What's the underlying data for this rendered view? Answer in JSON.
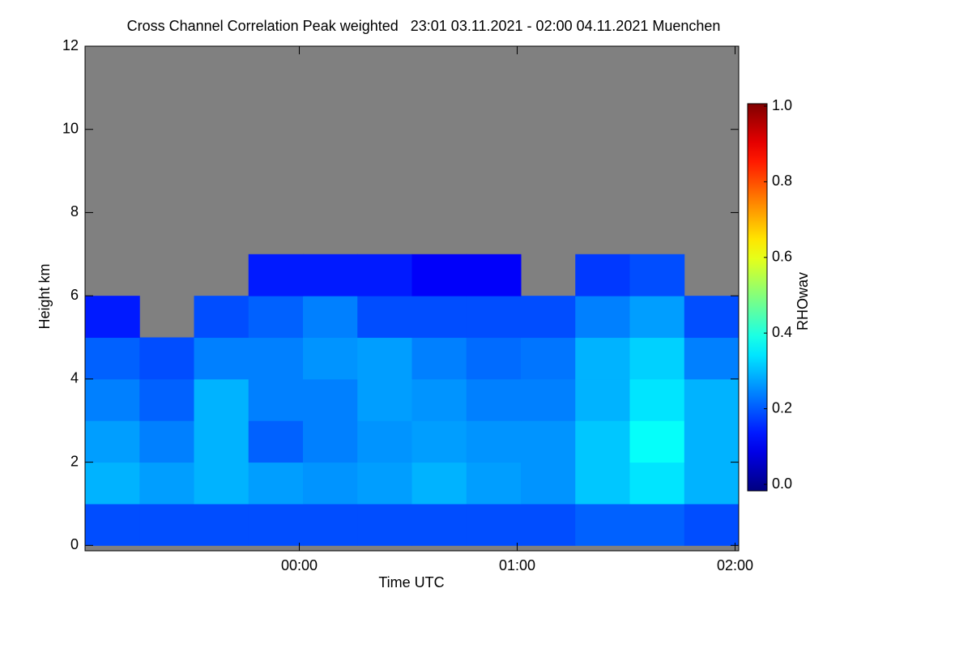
{
  "chart_data": {
    "type": "heatmap",
    "title": "Cross Channel Correlation Peak weighted   23:01 03.11.2021 - 02:00 04.11.2021 Muenchen",
    "x_label": "Time UTC",
    "y_label": "Height km",
    "x": [
      "2021-11-03T23:01",
      "2021-11-03T23:16",
      "2021-11-03T23:31",
      "2021-11-03T23:46",
      "2021-11-04T00:01",
      "2021-11-04T00:16",
      "2021-11-04T00:31",
      "2021-11-04T00:46",
      "2021-11-04T01:01",
      "2021-11-04T01:16",
      "2021-11-04T01:31",
      "2021-11-04T01:46"
    ],
    "y_bins": [
      0,
      1,
      2,
      3,
      4,
      5,
      6,
      7
    ],
    "z": [
      [
        0.2,
        0.2,
        0.2,
        0.2,
        0.2,
        0.2,
        0.2,
        0.2,
        0.2,
        0.22,
        0.22,
        0.2
      ],
      [
        0.3,
        0.28,
        0.3,
        0.28,
        0.27,
        0.28,
        0.3,
        0.28,
        0.27,
        0.32,
        0.35,
        0.3
      ],
      [
        0.28,
        0.25,
        0.3,
        0.22,
        0.25,
        0.27,
        0.28,
        0.27,
        0.27,
        0.32,
        0.38,
        0.3
      ],
      [
        0.25,
        0.22,
        0.3,
        0.25,
        0.25,
        0.28,
        0.27,
        0.25,
        0.25,
        0.3,
        0.35,
        0.3
      ],
      [
        0.22,
        0.2,
        0.25,
        0.25,
        0.27,
        0.28,
        0.25,
        0.23,
        0.24,
        0.3,
        0.33,
        0.25
      ],
      [
        0.15,
        null,
        0.2,
        0.22,
        0.25,
        0.2,
        0.2,
        0.2,
        0.2,
        0.25,
        0.28,
        0.2
      ],
      [
        null,
        null,
        null,
        0.15,
        0.15,
        0.15,
        0.12,
        0.12,
        null,
        0.18,
        0.2,
        null
      ]
    ],
    "xlim": [
      "2021-11-03T23:01",
      "2021-11-04T02:01"
    ],
    "xticks": [
      {
        "value": "2021-11-04T00:00",
        "label": "00:00"
      },
      {
        "value": "2021-11-04T01:00",
        "label": "01:00"
      },
      {
        "value": "2021-11-04T02:00",
        "label": "02:00"
      }
    ],
    "ylim": [
      -0.13,
      12
    ],
    "yticks": [
      0,
      2,
      4,
      6,
      8,
      10,
      12
    ],
    "background_color": "#808080",
    "colormap": "jet",
    "colorbar": {
      "label": "RHOwav",
      "lim": [
        0,
        1
      ],
      "ticks": [
        {
          "value": 0,
          "label": "0.0"
        },
        {
          "value": 0.2,
          "label": "0.2"
        },
        {
          "value": 0.4,
          "label": "0.4"
        },
        {
          "value": 0.6,
          "label": "0.6"
        },
        {
          "value": 0.8,
          "label": "0.8"
        },
        {
          "value": 1,
          "label": "1.0"
        }
      ]
    }
  }
}
